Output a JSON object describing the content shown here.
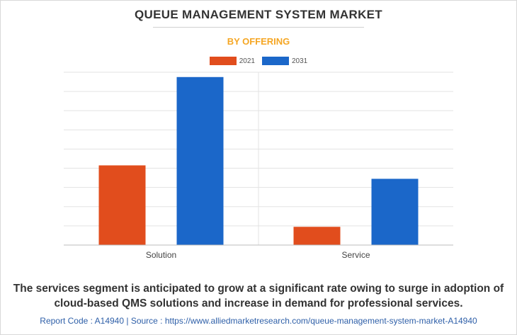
{
  "title": "QUEUE MANAGEMENT SYSTEM MARKET",
  "subtitle": "BY OFFERING",
  "colors": {
    "subtitle": "#f5a623",
    "series_2021": "#e14d1d",
    "series_2031": "#1b67c9",
    "grid": "#e3e3e3",
    "axis": "#bdbdbd"
  },
  "chart_data": {
    "type": "bar",
    "categories": [
      "Solution",
      "Service"
    ],
    "series": [
      {
        "name": "2021",
        "color": "#e14d1d",
        "values": [
          4.15,
          0.95
        ]
      },
      {
        "name": "2031",
        "color": "#1b67c9",
        "values": [
          8.75,
          3.45
        ]
      }
    ],
    "ylim": [
      0,
      9
    ],
    "yticks_labeled": false,
    "grid": true,
    "legend": "top-center"
  },
  "caption": "The services segment is anticipated to grow at a significant rate owing to surge in adoption of cloud-based QMS solutions and increase in demand for professional services.",
  "footer": "Report Code : A14940  |  Source : https://www.alliedmarketresearch.com/queue-management-system-market-A14940"
}
